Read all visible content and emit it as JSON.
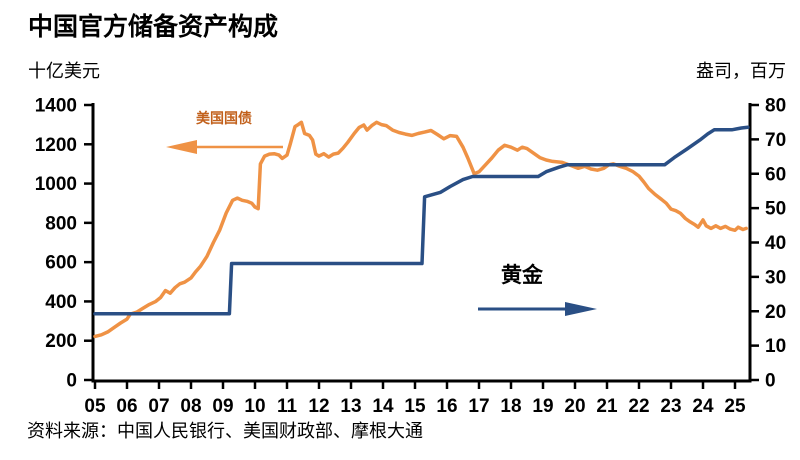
{
  "title": "中国官方储备资产构成",
  "left_axis_unit": "十亿美元",
  "right_axis_unit": "盎司，百万",
  "source": "资料来源：中国人民银行、美国财政部、摩根大通",
  "annotations": {
    "treasuries_label": "美国国债",
    "gold_label": "黄金"
  },
  "colors": {
    "treasuries": "#EF9245",
    "treasuries_label": "#C2611C",
    "gold": "#2A4F85",
    "axis": "#000000"
  },
  "chart_data": {
    "type": "line",
    "title": "中国官方储备资产构成",
    "x_ticks": [
      "05",
      "06",
      "07",
      "08",
      "09",
      "10",
      "11",
      "12",
      "13",
      "14",
      "15",
      "16",
      "17",
      "18",
      "19",
      "20",
      "21",
      "22",
      "23",
      "24",
      "25"
    ],
    "x_range": [
      2005,
      2025.5
    ],
    "grid": false,
    "legend_position": "inline-arrows",
    "left_axis": {
      "label": "十亿美元",
      "range": [
        0,
        1400
      ],
      "ticks": [
        0,
        200,
        400,
        600,
        800,
        1000,
        1200,
        1400
      ]
    },
    "right_axis": {
      "label": "盎司，百万",
      "range": [
        0,
        80
      ],
      "ticks": [
        0,
        10,
        20,
        30,
        40,
        50,
        60,
        70,
        80
      ]
    },
    "series": [
      {
        "name": "美国国债",
        "axis": "left",
        "color": "#EF9245",
        "points": [
          [
            2005.0,
            222
          ],
          [
            2005.2,
            230
          ],
          [
            2005.4,
            245
          ],
          [
            2005.6,
            268
          ],
          [
            2005.8,
            290
          ],
          [
            2006.0,
            310
          ],
          [
            2006.1,
            335
          ],
          [
            2006.3,
            345
          ],
          [
            2006.5,
            365
          ],
          [
            2006.7,
            385
          ],
          [
            2006.9,
            400
          ],
          [
            2007.05,
            420
          ],
          [
            2007.2,
            455
          ],
          [
            2007.35,
            442
          ],
          [
            2007.5,
            470
          ],
          [
            2007.65,
            490
          ],
          [
            2007.8,
            498
          ],
          [
            2008.0,
            520
          ],
          [
            2008.15,
            552
          ],
          [
            2008.3,
            580
          ],
          [
            2008.5,
            630
          ],
          [
            2008.7,
            700
          ],
          [
            2008.9,
            764
          ],
          [
            2009.1,
            850
          ],
          [
            2009.3,
            915
          ],
          [
            2009.45,
            926
          ],
          [
            2009.6,
            915
          ],
          [
            2009.75,
            910
          ],
          [
            2009.9,
            900
          ],
          [
            2010.0,
            880
          ],
          [
            2010.1,
            872
          ],
          [
            2010.17,
            1100
          ],
          [
            2010.3,
            1140
          ],
          [
            2010.45,
            1150
          ],
          [
            2010.6,
            1152
          ],
          [
            2010.75,
            1145
          ],
          [
            2010.85,
            1128
          ],
          [
            2011.0,
            1145
          ],
          [
            2011.1,
            1200
          ],
          [
            2011.25,
            1290
          ],
          [
            2011.35,
            1300
          ],
          [
            2011.45,
            1312
          ],
          [
            2011.55,
            1255
          ],
          [
            2011.7,
            1245
          ],
          [
            2011.8,
            1222
          ],
          [
            2011.9,
            1150
          ],
          [
            2012.0,
            1140
          ],
          [
            2012.15,
            1152
          ],
          [
            2012.3,
            1135
          ],
          [
            2012.45,
            1150
          ],
          [
            2012.6,
            1155
          ],
          [
            2012.75,
            1180
          ],
          [
            2012.9,
            1210
          ],
          [
            2013.1,
            1255
          ],
          [
            2013.25,
            1285
          ],
          [
            2013.4,
            1298
          ],
          [
            2013.5,
            1272
          ],
          [
            2013.65,
            1295
          ],
          [
            2013.8,
            1312
          ],
          [
            2013.95,
            1300
          ],
          [
            2014.1,
            1295
          ],
          [
            2014.3,
            1272
          ],
          [
            2014.5,
            1260
          ],
          [
            2014.7,
            1252
          ],
          [
            2014.9,
            1245
          ],
          [
            2015.1,
            1255
          ],
          [
            2015.3,
            1262
          ],
          [
            2015.5,
            1270
          ],
          [
            2015.7,
            1250
          ],
          [
            2015.9,
            1228
          ],
          [
            2016.1,
            1244
          ],
          [
            2016.3,
            1240
          ],
          [
            2016.5,
            1185
          ],
          [
            2016.65,
            1130
          ],
          [
            2016.85,
            1050
          ],
          [
            2017.0,
            1060
          ],
          [
            2017.2,
            1095
          ],
          [
            2017.4,
            1130
          ],
          [
            2017.6,
            1170
          ],
          [
            2017.8,
            1195
          ],
          [
            2018.0,
            1185
          ],
          [
            2018.2,
            1170
          ],
          [
            2018.35,
            1185
          ],
          [
            2018.5,
            1178
          ],
          [
            2018.7,
            1155
          ],
          [
            2018.9,
            1132
          ],
          [
            2019.1,
            1120
          ],
          [
            2019.3,
            1113
          ],
          [
            2019.6,
            1108
          ],
          [
            2019.9,
            1090
          ],
          [
            2020.1,
            1078
          ],
          [
            2020.3,
            1088
          ],
          [
            2020.5,
            1074
          ],
          [
            2020.7,
            1068
          ],
          [
            2020.9,
            1078
          ],
          [
            2021.05,
            1095
          ],
          [
            2021.2,
            1100
          ],
          [
            2021.4,
            1088
          ],
          [
            2021.6,
            1078
          ],
          [
            2021.8,
            1062
          ],
          [
            2022.0,
            1038
          ],
          [
            2022.15,
            1008
          ],
          [
            2022.3,
            975
          ],
          [
            2022.5,
            945
          ],
          [
            2022.7,
            920
          ],
          [
            2022.85,
            900
          ],
          [
            2023.0,
            870
          ],
          [
            2023.15,
            862
          ],
          [
            2023.3,
            848
          ],
          [
            2023.45,
            822
          ],
          [
            2023.6,
            805
          ],
          [
            2023.75,
            790
          ],
          [
            2023.85,
            778
          ],
          [
            2024.0,
            815
          ],
          [
            2024.1,
            785
          ],
          [
            2024.25,
            772
          ],
          [
            2024.4,
            785
          ],
          [
            2024.55,
            772
          ],
          [
            2024.7,
            782
          ],
          [
            2024.85,
            768
          ],
          [
            2025.0,
            762
          ],
          [
            2025.1,
            778
          ],
          [
            2025.25,
            766
          ],
          [
            2025.35,
            772
          ]
        ]
      },
      {
        "name": "黄金",
        "axis": "right",
        "color": "#2A4F85",
        "points": [
          [
            2005.0,
            19.3
          ],
          [
            2009.2,
            19.3
          ],
          [
            2009.27,
            33.9
          ],
          [
            2015.22,
            33.9
          ],
          [
            2015.3,
            53.3
          ],
          [
            2015.8,
            54.6
          ],
          [
            2016.1,
            56.3
          ],
          [
            2016.5,
            58.3
          ],
          [
            2016.8,
            59.2
          ],
          [
            2018.85,
            59.2
          ],
          [
            2019.1,
            60.6
          ],
          [
            2019.5,
            61.9
          ],
          [
            2019.75,
            62.6
          ],
          [
            2022.8,
            62.6
          ],
          [
            2023.1,
            64.7
          ],
          [
            2023.5,
            67.2
          ],
          [
            2023.9,
            69.8
          ],
          [
            2024.15,
            71.6
          ],
          [
            2024.35,
            72.8
          ],
          [
            2024.9,
            72.8
          ],
          [
            2025.2,
            73.3
          ],
          [
            2025.4,
            73.5
          ]
        ]
      }
    ]
  }
}
